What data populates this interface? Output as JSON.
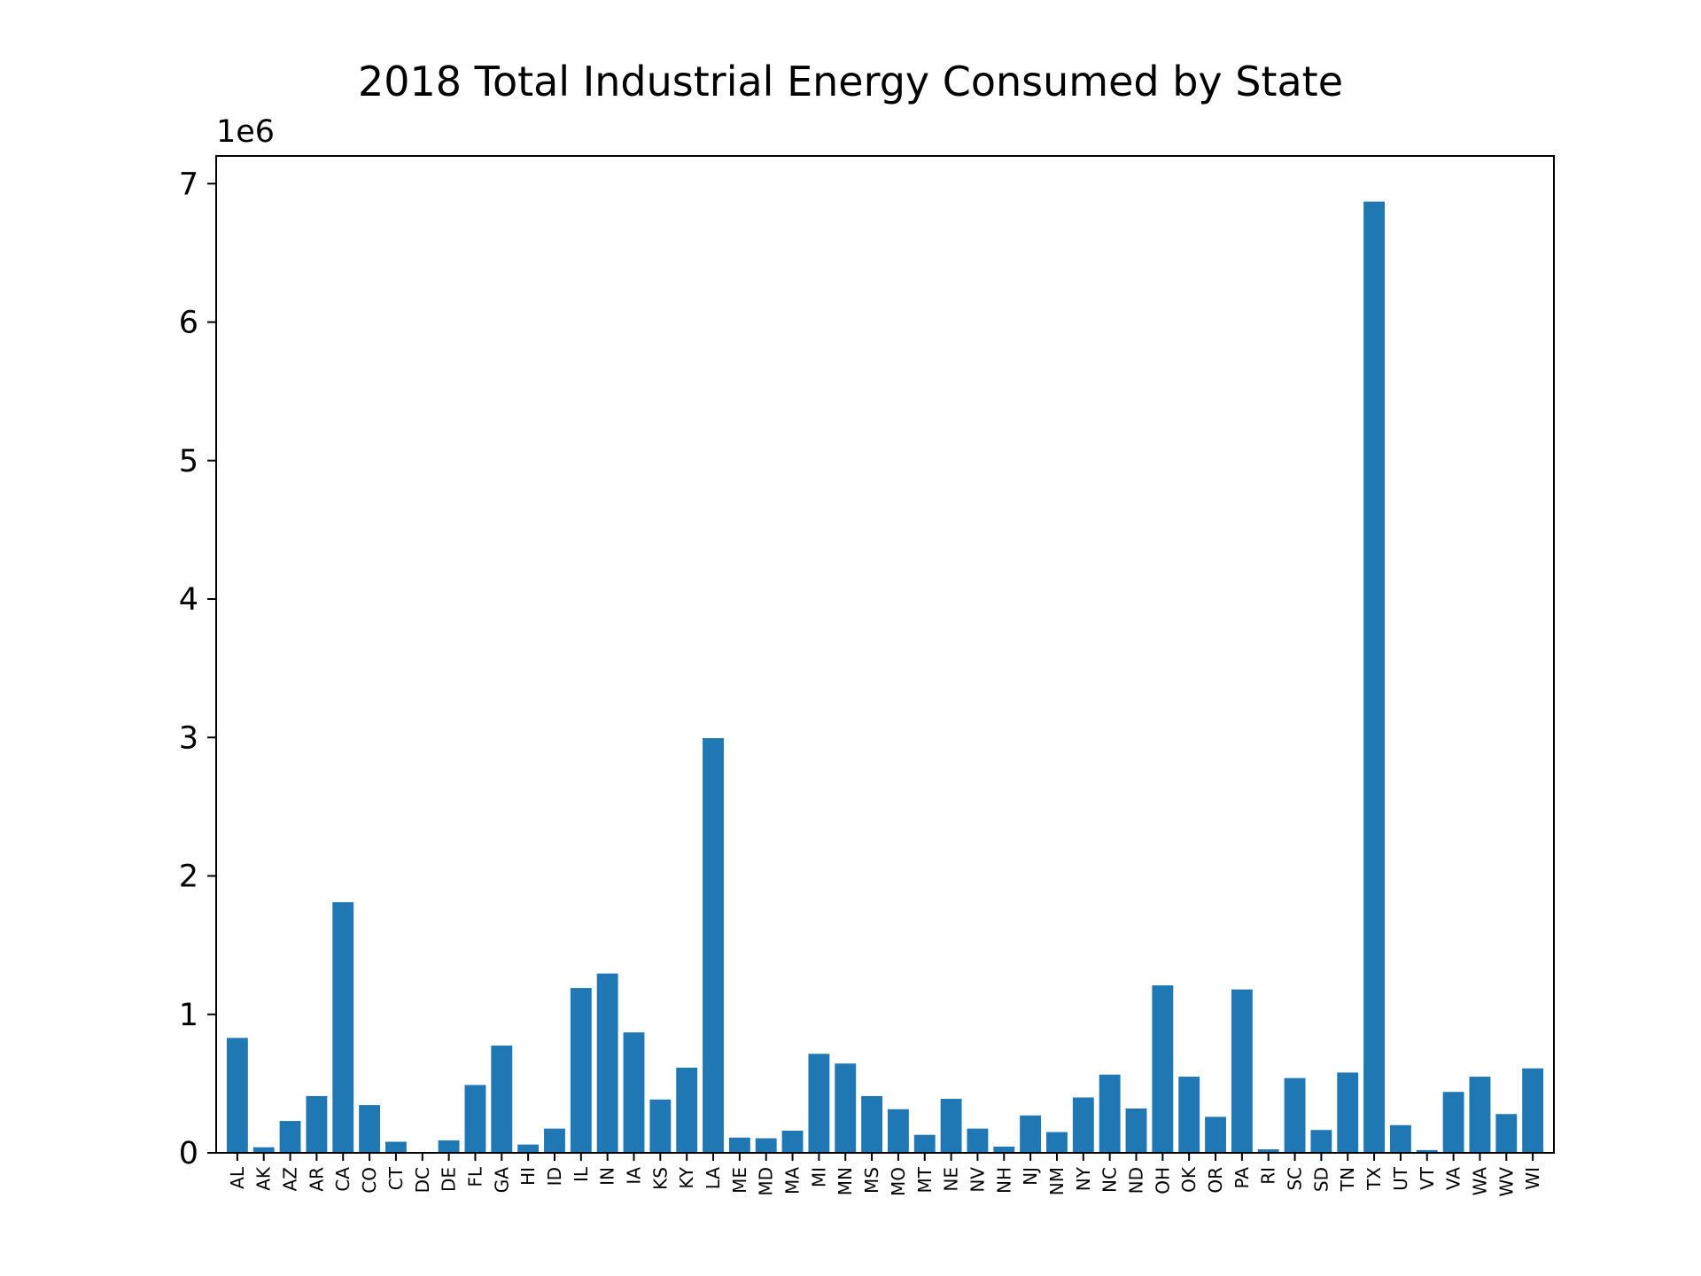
{
  "chart_data": {
    "type": "bar",
    "title": "2018 Total Industrial Energy Consumed by State",
    "xlabel": "",
    "ylabel": "",
    "y_offset_label": "1e6",
    "ylim": [
      0,
      7200000
    ],
    "yticks": [
      0,
      1000000,
      2000000,
      3000000,
      4000000,
      5000000,
      6000000,
      7000000
    ],
    "ytick_labels": [
      "0",
      "1",
      "2",
      "3",
      "4",
      "5",
      "6",
      "7"
    ],
    "grid": false,
    "bar_color": "#1f77b4",
    "categories": [
      "AL",
      "AK",
      "AZ",
      "AR",
      "CA",
      "CO",
      "CT",
      "DC",
      "DE",
      "FL",
      "GA",
      "HI",
      "ID",
      "IL",
      "IN",
      "IA",
      "KS",
      "KY",
      "LA",
      "ME",
      "MD",
      "MA",
      "MI",
      "MN",
      "MS",
      "MO",
      "MT",
      "NE",
      "NV",
      "NH",
      "NJ",
      "NM",
      "NY",
      "NC",
      "ND",
      "OH",
      "OK",
      "OR",
      "PA",
      "RI",
      "SC",
      "SD",
      "TN",
      "TX",
      "UT",
      "VT",
      "VA",
      "WA",
      "WV",
      "WI"
    ],
    "values": [
      830000,
      40000,
      230000,
      410000,
      1810000,
      345000,
      80000,
      0,
      90000,
      490000,
      775000,
      60000,
      175000,
      1190000,
      1295000,
      870000,
      385000,
      615000,
      2995000,
      110000,
      105000,
      160000,
      715000,
      645000,
      410000,
      315000,
      130000,
      390000,
      175000,
      45000,
      270000,
      150000,
      400000,
      565000,
      320000,
      1210000,
      550000,
      260000,
      1180000,
      25000,
      540000,
      165000,
      580000,
      6870000,
      200000,
      20000,
      440000,
      550000,
      280000,
      610000
    ]
  }
}
